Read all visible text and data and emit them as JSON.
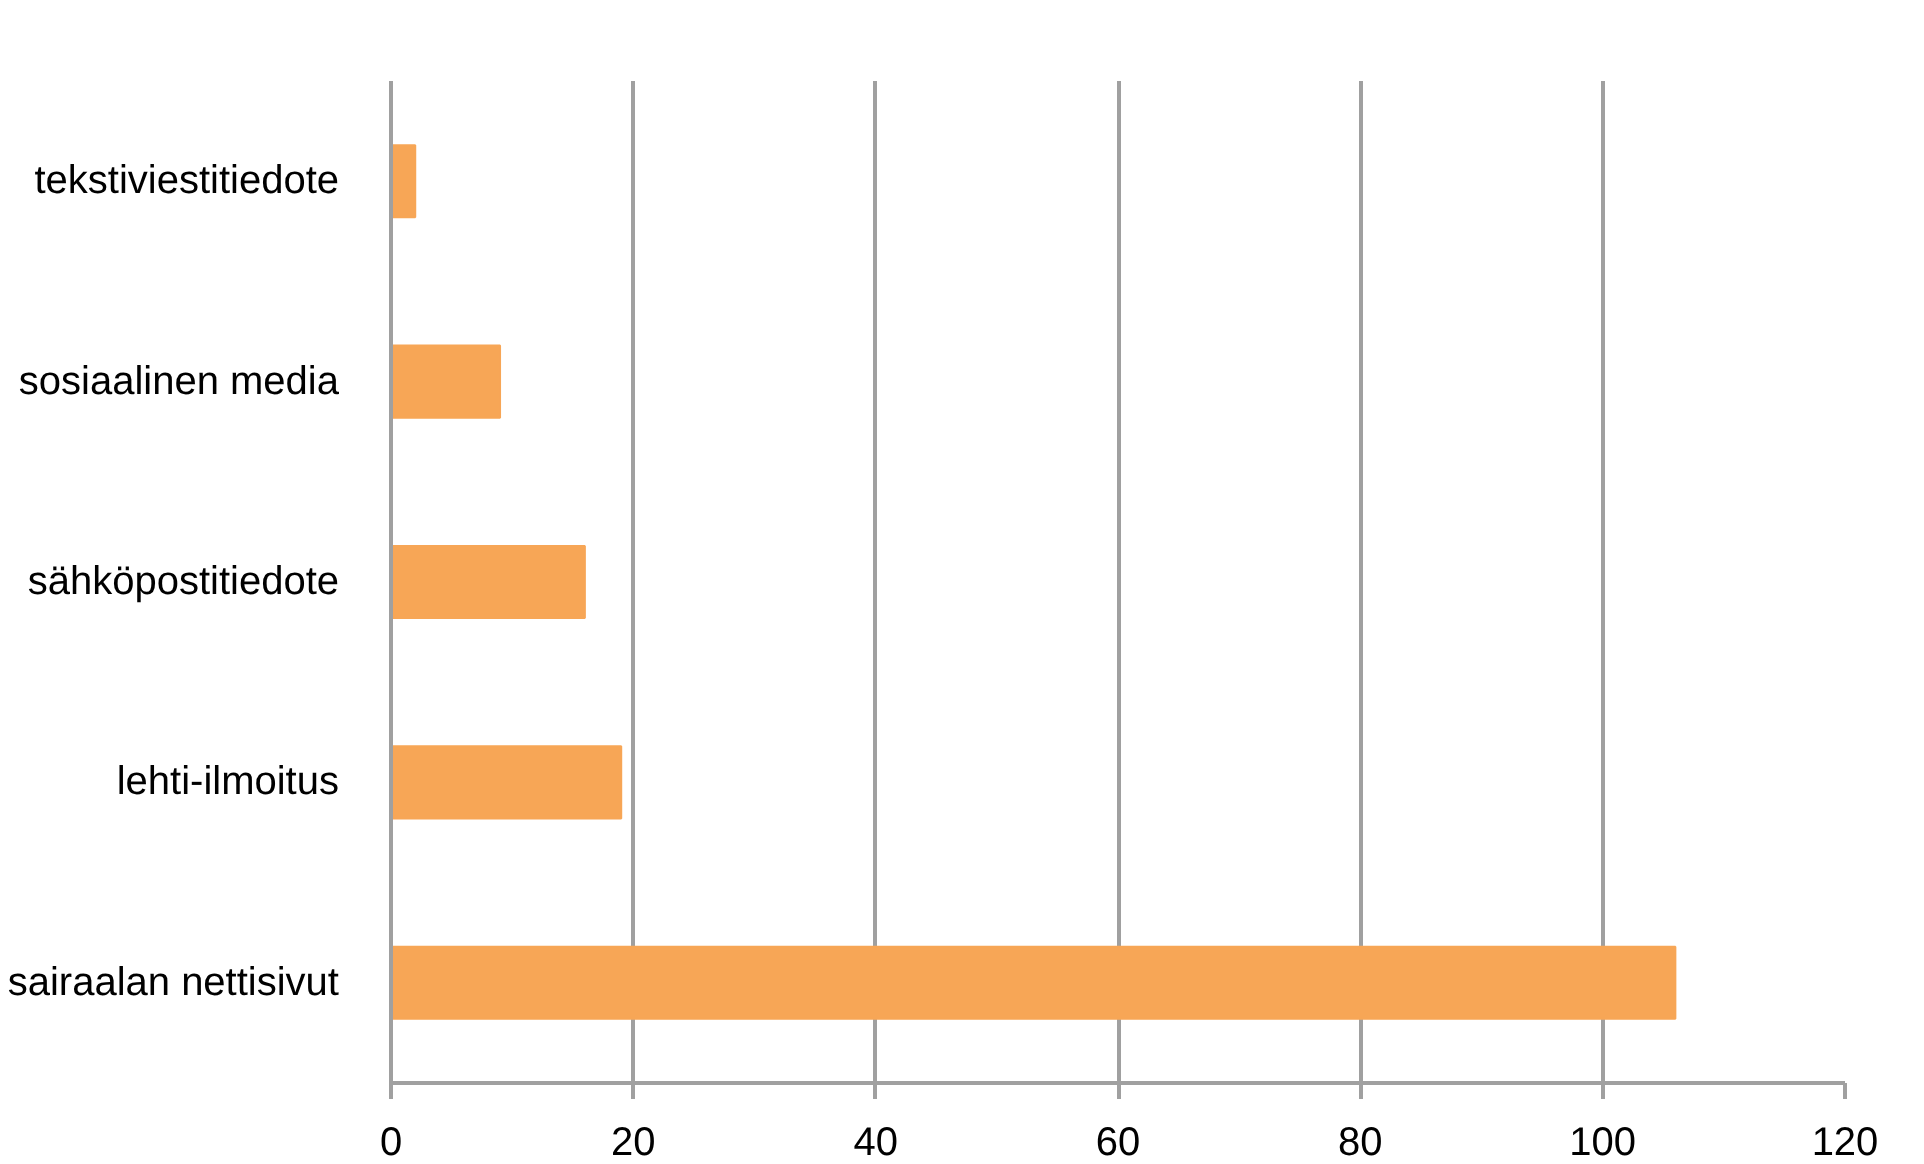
{
  "chart_data": {
    "type": "bar",
    "orientation": "horizontal",
    "categories": [
      "tekstiviestitiedote",
      "sosiaalinen media",
      "sähköpostitiedote",
      "lehti-ilmoitus",
      "sairaalan nettisivut"
    ],
    "values": [
      2,
      9,
      16,
      19,
      106
    ],
    "color": "#f7a656",
    "xlim": [
      0,
      120
    ],
    "xticks": [
      0,
      20,
      40,
      60,
      80,
      100,
      120
    ],
    "grid": "x"
  }
}
